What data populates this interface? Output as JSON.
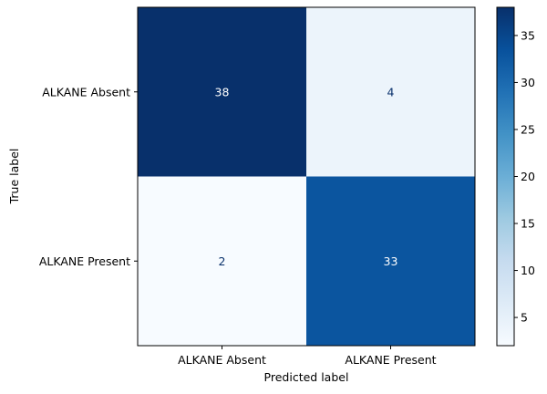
{
  "chart_data": {
    "type": "heatmap",
    "title": "",
    "xlabel": "Predicted label",
    "ylabel": "True label",
    "x_categories": [
      "ALKANE Absent",
      "ALKANE Present"
    ],
    "y_categories": [
      "ALKANE Absent",
      "ALKANE Present"
    ],
    "values": [
      [
        38,
        4
      ],
      [
        2,
        33
      ]
    ],
    "colormap": "Blues",
    "color_min": 2,
    "color_max": 38,
    "colorbar_ticks": [
      5,
      10,
      15,
      20,
      25,
      30,
      35
    ],
    "grid": false
  }
}
